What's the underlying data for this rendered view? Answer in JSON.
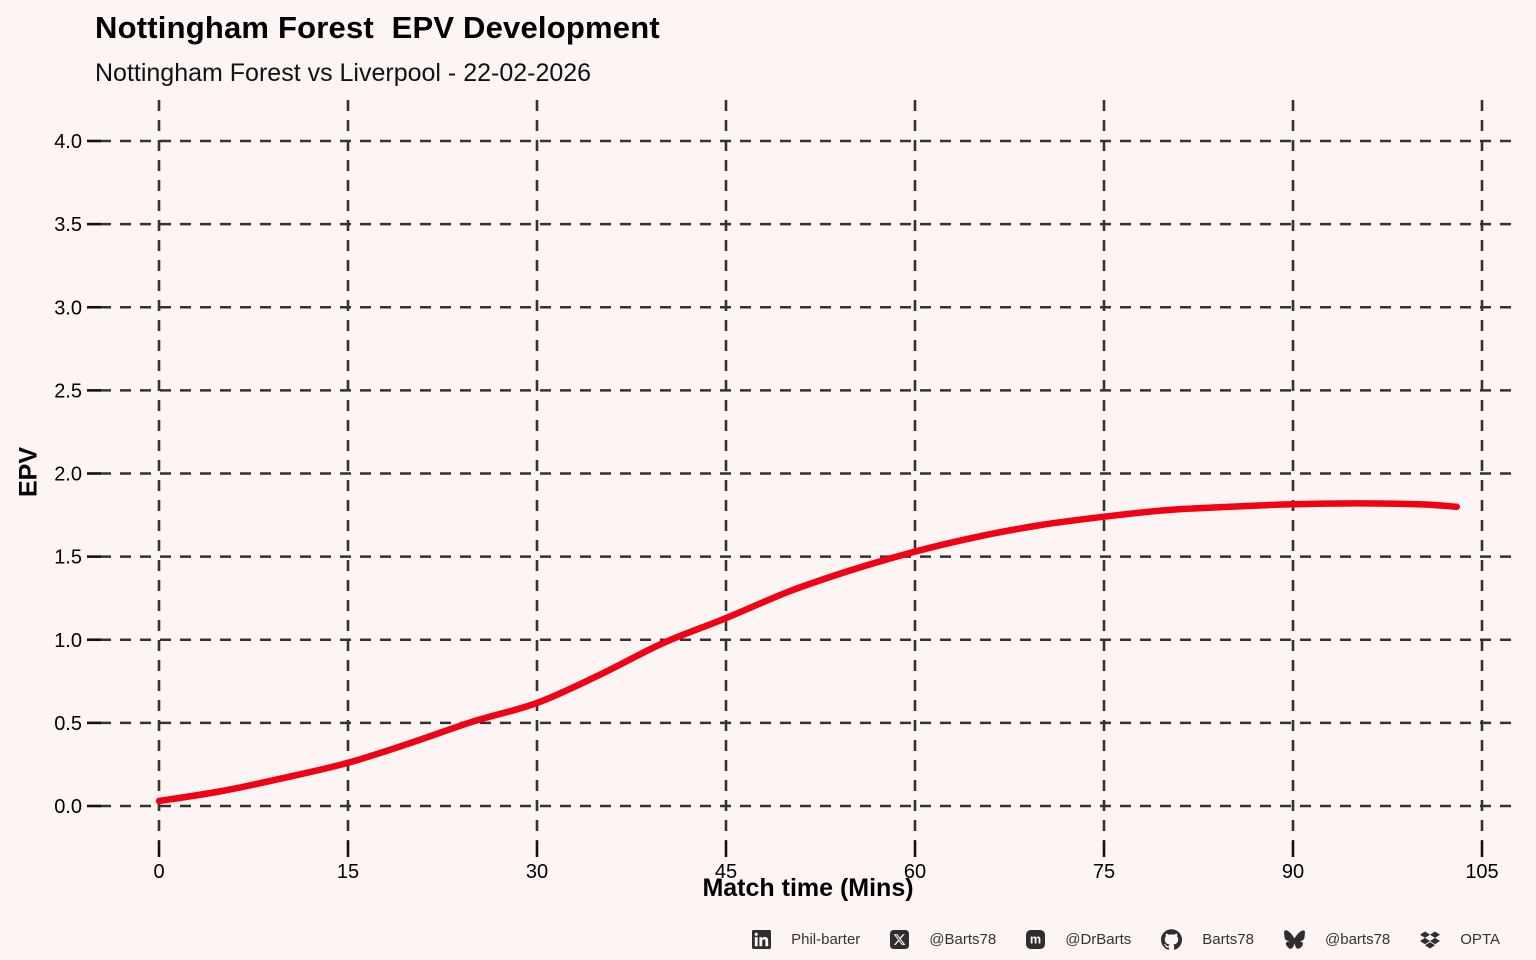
{
  "header": {
    "title": "Nottingham Forest  EPV Development",
    "subtitle": "Nottingham Forest vs Liverpool - 22-02-2026"
  },
  "chart_data": {
    "type": "line",
    "title": "Nottingham Forest  EPV Development",
    "subtitle": "Nottingham Forest vs Liverpool - 22-02-2026",
    "xlabel": "Match time (Mins)",
    "ylabel": "EPV",
    "xlim": [
      0,
      105
    ],
    "ylim": [
      0,
      4
    ],
    "xticks": [
      0,
      15,
      30,
      45,
      60,
      75,
      90,
      105
    ],
    "xtick_labels": [
      "0",
      "15",
      "30",
      "45",
      "60",
      "75",
      "90",
      "105"
    ],
    "yticks": [
      0,
      0.5,
      1,
      1.5,
      2,
      2.5,
      3,
      3.5,
      4
    ],
    "ytick_labels": [
      "0.0",
      "0.5",
      "1.0",
      "1.5",
      "2.0",
      "2.5",
      "3.0",
      "3.5",
      "4.0"
    ],
    "grid": "dashed both axes, dark gray",
    "legend": "none",
    "series": [
      {
        "name": "Nottingham Forest EPV",
        "color": "#F20013",
        "x": [
          0,
          5,
          10,
          15,
          20,
          25,
          30,
          35,
          40,
          45,
          50,
          55,
          60,
          65,
          70,
          75,
          80,
          85,
          90,
          95,
          100,
          103
        ],
        "y": [
          0.03,
          0.09,
          0.17,
          0.26,
          0.38,
          0.51,
          0.62,
          0.79,
          0.98,
          1.13,
          1.29,
          1.42,
          1.53,
          1.62,
          1.69,
          1.74,
          1.78,
          1.8,
          1.815,
          1.82,
          1.815,
          1.8
        ]
      }
    ]
  },
  "footer": {
    "items": [
      {
        "icon": "linkedin",
        "label": "Phil-barter"
      },
      {
        "icon": "x-twitter",
        "label": "@Barts78"
      },
      {
        "icon": "mastodon",
        "label": "@DrBarts"
      },
      {
        "icon": "github",
        "label": "Barts78"
      },
      {
        "icon": "bluesky",
        "label": "@barts78"
      },
      {
        "icon": "dropbox",
        "label": "OPTA"
      }
    ]
  },
  "colors": {
    "background": "#FDF5F3",
    "line": "#F20013",
    "grid": "#333333",
    "text": "#000000",
    "footer_text": "#333333",
    "icon": "#2E2E2E"
  }
}
